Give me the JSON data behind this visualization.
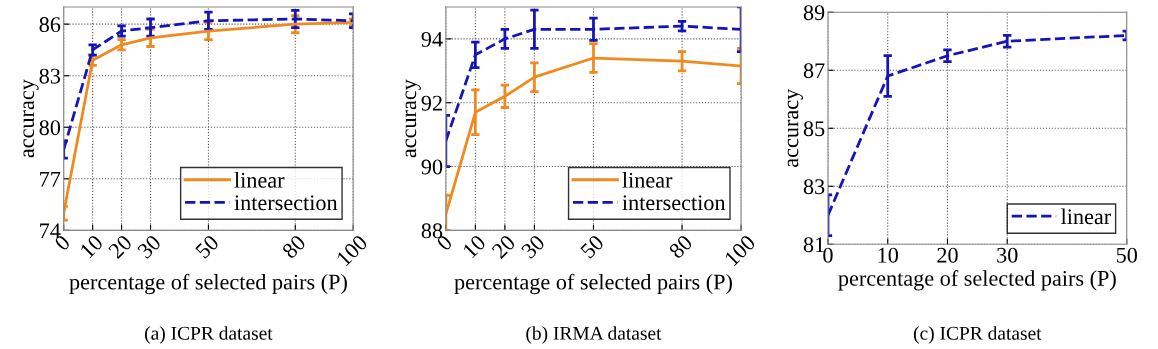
{
  "chart_data": [
    {
      "type": "line",
      "title": "(a) ICPR dataset",
      "xlabel": "percentage of selected pairs (P)",
      "ylabel": "accuracy",
      "x": [
        0,
        10,
        20,
        30,
        50,
        80,
        100
      ],
      "xlim": [
        0,
        100
      ],
      "xticks": [
        0,
        10,
        20,
        30,
        50,
        80,
        100
      ],
      "ylim": [
        74,
        87
      ],
      "yticks": [
        74,
        77,
        80,
        83,
        86
      ],
      "grid": true,
      "legend": "bottom right",
      "series": [
        {
          "name": "linear",
          "color": "#f0891e",
          "line_style": "solid",
          "values": [
            75.0,
            83.9,
            84.8,
            85.2,
            85.6,
            86.0,
            86.1
          ],
          "errors": [
            0.4,
            0.3,
            0.3,
            0.5,
            0.5,
            0.5,
            0.2
          ]
        },
        {
          "name": "intersection",
          "color": "#1414b8",
          "line_style": "dashed",
          "values": [
            78.7,
            84.5,
            85.6,
            85.8,
            86.2,
            86.3,
            86.2
          ],
          "errors": [
            0.5,
            0.3,
            0.3,
            0.5,
            0.5,
            0.5,
            0.4
          ]
        }
      ]
    },
    {
      "type": "line",
      "title": "(b) IRMA dataset",
      "xlabel": "percentage of selected pairs (P)",
      "ylabel": "accuracy",
      "x": [
        0,
        10,
        20,
        30,
        50,
        80,
        100
      ],
      "xlim": [
        0,
        100
      ],
      "xticks": [
        0,
        10,
        20,
        30,
        50,
        80,
        100
      ],
      "ylim": [
        88,
        95
      ],
      "yticks": [
        88,
        90,
        92,
        94
      ],
      "grid": true,
      "legend": "bottom right",
      "series": [
        {
          "name": "linear",
          "color": "#f0891e",
          "line_style": "solid",
          "values": [
            88.5,
            91.7,
            92.2,
            92.8,
            93.4,
            93.3,
            93.15
          ],
          "errors": [
            [
              88.0,
              89.1
            ],
            0.7,
            0.35,
            0.45,
            0.45,
            0.3,
            0.55
          ]
        },
        {
          "name": "intersection",
          "color": "#1414b8",
          "line_style": "dashed",
          "values": [
            90.8,
            93.5,
            94.0,
            94.3,
            94.3,
            94.4,
            94.3
          ],
          "errors": [
            0.8,
            0.4,
            0.3,
            0.6,
            0.35,
            0.15,
            0.7
          ]
        }
      ]
    },
    {
      "type": "line",
      "title": "(c) ICPR dataset",
      "xlabel": "percentage of selected pairs (P)",
      "ylabel": "accuracy",
      "x": [
        0,
        10,
        20,
        30,
        50
      ],
      "xlim": [
        0,
        50
      ],
      "xticks": [
        0,
        10,
        20,
        30,
        50
      ],
      "ylim": [
        81,
        89
      ],
      "yticks": [
        81,
        83,
        85,
        87,
        89
      ],
      "grid": true,
      "legend": "bottom right",
      "series": [
        {
          "name": "linear",
          "color": "#1414b8",
          "line_style": "dashed",
          "values": [
            82.0,
            86.8,
            87.5,
            88.0,
            88.2
          ],
          "errors": [
            0.7,
            0.7,
            0.2,
            0.2,
            0.15
          ]
        }
      ]
    }
  ]
}
